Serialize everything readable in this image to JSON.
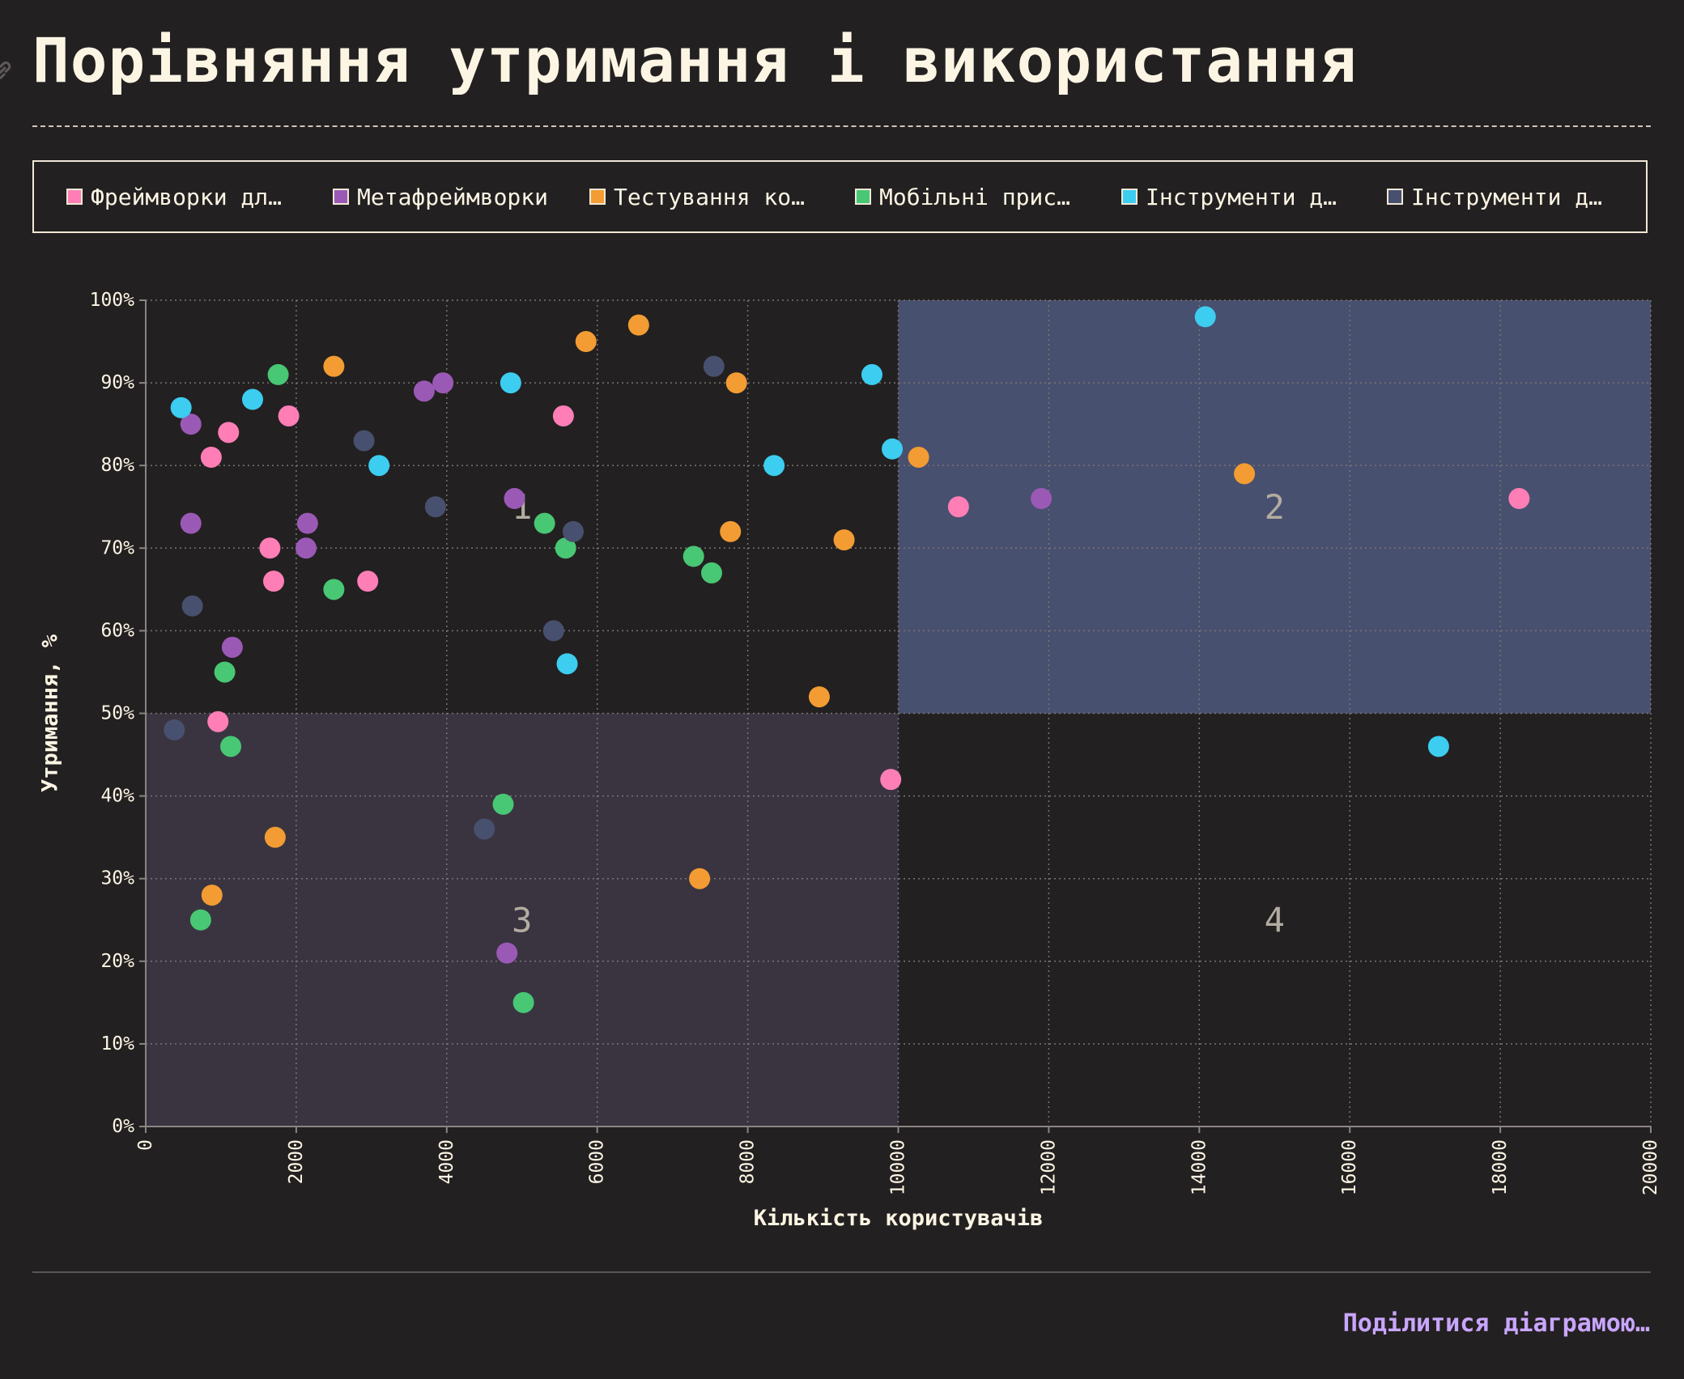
{
  "title": "Порівняння утримання і використання",
  "share_label": "Поділитися діаграмою…",
  "colors": {
    "background": "#232021",
    "quadrant_top_right": "#48506f",
    "quadrant_bottom_left": "#3a3441",
    "grid": "#7a7474",
    "text": "#fdf5e4"
  },
  "legend": [
    {
      "label": "Фреймворки дл…",
      "color": "#ff7eb6"
    },
    {
      "label": "Метафреймворки",
      "color": "#9b59b6"
    },
    {
      "label": "Тестування ко…",
      "color": "#f39c33"
    },
    {
      "label": "Мобільні прис…",
      "color": "#48c774"
    },
    {
      "label": "Інструменти д…",
      "color": "#3ccdf0"
    },
    {
      "label": "Інструменти д…",
      "color": "#48506f"
    }
  ],
  "chart_data": {
    "type": "scatter",
    "xlabel": "Кількість користувачів",
    "ylabel": "Утримання, %",
    "xlim": [
      0,
      20000
    ],
    "ylim": [
      0,
      100
    ],
    "xticks": [
      0,
      2000,
      4000,
      6000,
      8000,
      10000,
      12000,
      14000,
      16000,
      18000,
      20000
    ],
    "yticks": [
      0,
      10,
      20,
      30,
      40,
      50,
      60,
      70,
      80,
      90,
      100
    ],
    "ytick_suffix": "%",
    "grid": true,
    "legend_position": "top",
    "quadrant_split": {
      "x": 10000,
      "y": 50
    },
    "quadrant_labels": [
      {
        "label": "1",
        "x": 5000,
        "y": 75
      },
      {
        "label": "2",
        "x": 15000,
        "y": 75
      },
      {
        "label": "3",
        "x": 5000,
        "y": 25
      },
      {
        "label": "4",
        "x": 15000,
        "y": 25
      }
    ],
    "series": [
      {
        "color": "#ff7eb6",
        "points": [
          [
            870,
            81
          ],
          [
            1100,
            84
          ],
          [
            1900,
            86
          ],
          [
            1650,
            70
          ],
          [
            1700,
            66
          ],
          [
            960,
            49
          ],
          [
            2950,
            66
          ],
          [
            5550,
            86
          ],
          [
            9900,
            42
          ],
          [
            10800,
            75
          ],
          [
            18250,
            76
          ]
        ]
      },
      {
        "color": "#9b59b6",
        "points": [
          [
            600,
            85
          ],
          [
            600,
            73
          ],
          [
            1150,
            58
          ],
          [
            2150,
            73
          ],
          [
            2130,
            70
          ],
          [
            3700,
            89
          ],
          [
            3950,
            90
          ],
          [
            4900,
            76
          ],
          [
            4800,
            21
          ],
          [
            11900,
            76
          ]
        ]
      },
      {
        "color": "#f39c33",
        "points": [
          [
            2500,
            92
          ],
          [
            5850,
            95
          ],
          [
            6550,
            97
          ],
          [
            7850,
            90
          ],
          [
            10270,
            81
          ],
          [
            7770,
            72
          ],
          [
            9280,
            71
          ],
          [
            14600,
            79
          ],
          [
            8950,
            52
          ],
          [
            1720,
            35
          ],
          [
            880,
            28
          ],
          [
            7360,
            30
          ]
        ]
      },
      {
        "color": "#48c774",
        "points": [
          [
            1760,
            91
          ],
          [
            2500,
            65
          ],
          [
            1050,
            55
          ],
          [
            1130,
            46
          ],
          [
            730,
            25
          ],
          [
            5300,
            73
          ],
          [
            5580,
            70
          ],
          [
            7280,
            69
          ],
          [
            7520,
            67
          ],
          [
            4750,
            39
          ],
          [
            5020,
            15
          ]
        ]
      },
      {
        "color": "#3ccdf0",
        "points": [
          [
            470,
            87
          ],
          [
            1420,
            88
          ],
          [
            3100,
            80
          ],
          [
            4850,
            90
          ],
          [
            9650,
            91
          ],
          [
            8350,
            80
          ],
          [
            9920,
            82
          ],
          [
            5600,
            56
          ],
          [
            14080,
            98
          ],
          [
            17180,
            46
          ]
        ]
      },
      {
        "color": "#48506f",
        "points": [
          [
            2900,
            83
          ],
          [
            3850,
            75
          ],
          [
            620,
            63
          ],
          [
            380,
            48
          ],
          [
            7550,
            92
          ],
          [
            5680,
            72
          ],
          [
            5420,
            60
          ],
          [
            4500,
            36
          ]
        ]
      }
    ]
  }
}
